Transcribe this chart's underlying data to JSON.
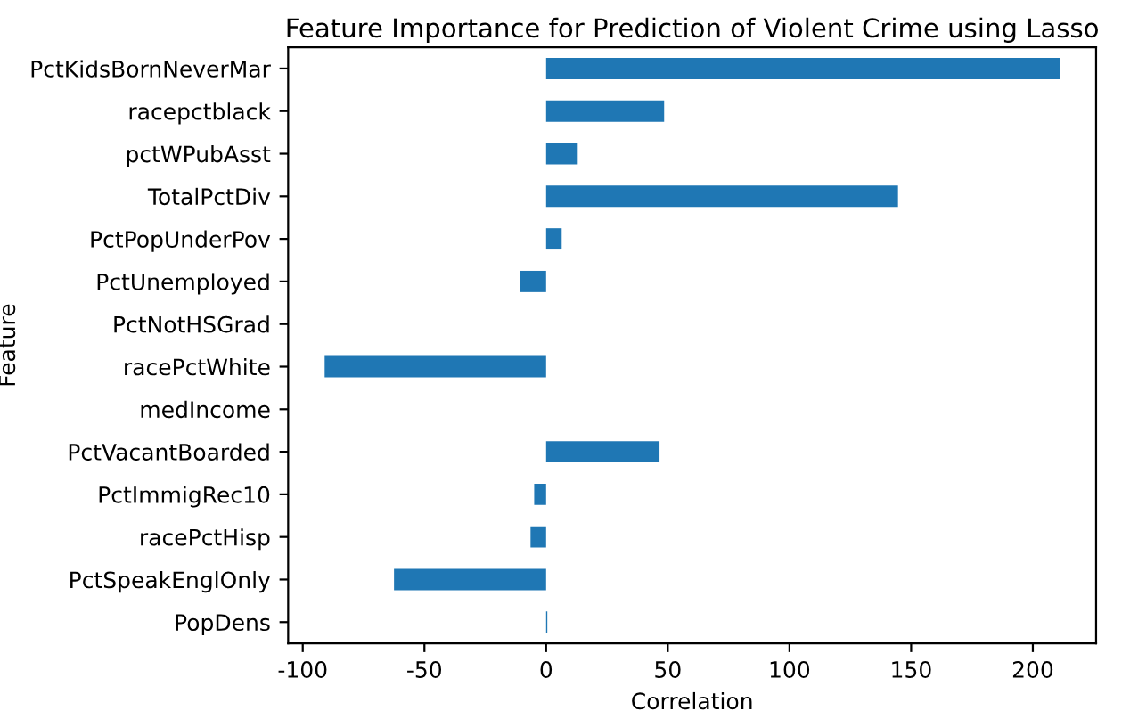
{
  "chart_data": {
    "type": "bar",
    "orientation": "horizontal",
    "title": "Feature Importance for Prediction of Violent Crime using Lasso",
    "xlabel": "Correlation",
    "ylabel": "Feature",
    "categories": [
      "PctKidsBornNeverMar",
      "racepctblack",
      "pctWPubAsst",
      "TotalPctDiv",
      "PctPopUnderPov",
      "PctUnemployed",
      "PctNotHSGrad",
      "racePctWhite",
      "medIncome",
      "PctVacantBoarded",
      "PctImmigRec10",
      "racePctHisp",
      "PctSpeakEnglOnly",
      "PopDens"
    ],
    "values": [
      211,
      48.5,
      13,
      144.6,
      6.4,
      -10.8,
      0,
      -91,
      0,
      46.6,
      -4.9,
      -6.4,
      -62.5,
      0.5
    ],
    "color": "#1f77b4",
    "xlim": [
      -106,
      226
    ],
    "xticks": [
      -100,
      -50,
      0,
      50,
      100,
      150,
      200
    ],
    "grid": false,
    "legend": false
  }
}
